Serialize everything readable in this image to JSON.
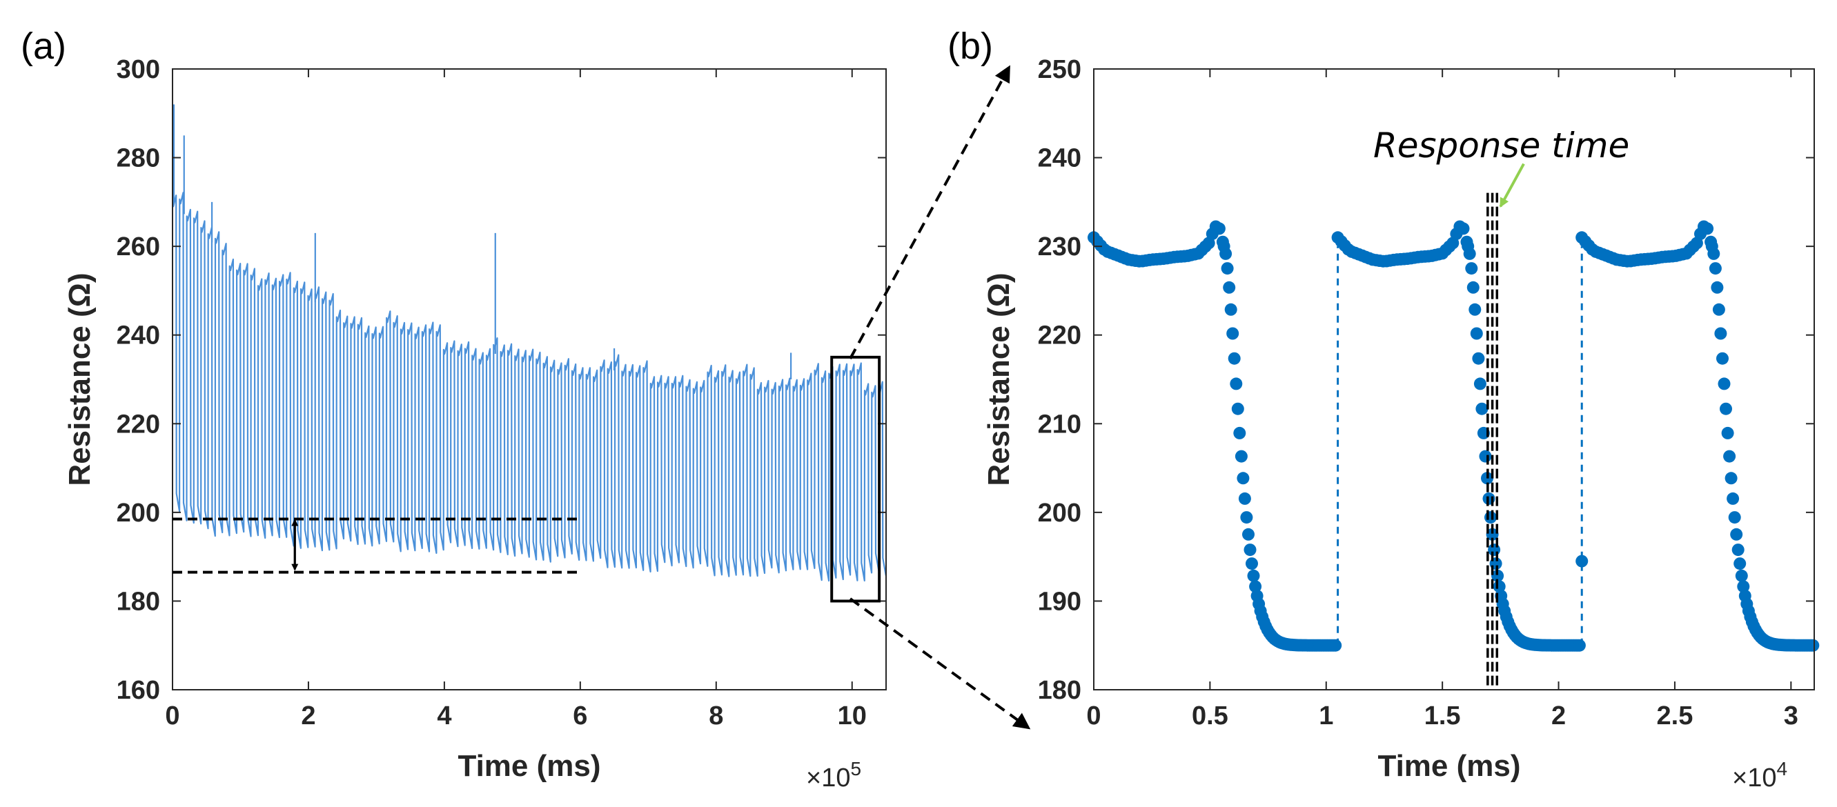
{
  "chart_data": [
    {
      "panel": "(a)",
      "type": "line",
      "xlabel": "Time (ms)",
      "ylabel": "Resistance (Ω)",
      "x_multiplier": "×10",
      "x_exponent": "5",
      "xlim": [
        0,
        10.5
      ],
      "ylim": [
        160,
        300
      ],
      "xticks": [
        0,
        2,
        4,
        6,
        8,
        10
      ],
      "yticks": [
        160,
        180,
        200,
        220,
        240,
        260,
        280,
        300
      ],
      "color": "#4a90d9",
      "cycles": 100,
      "series": [
        {
          "name": "Resistance",
          "x": [
            0,
            0.5,
            1,
            2,
            3,
            4,
            5,
            6,
            7,
            8,
            9,
            10,
            10.5
          ],
          "upper": [
            270,
            262,
            255,
            248,
            242,
            238,
            235,
            233,
            231,
            230,
            230,
            230,
            229
          ],
          "lower": [
            200,
            196,
            194,
            193,
            192,
            192,
            191,
            189,
            188,
            187,
            186,
            186,
            185
          ]
        }
      ],
      "spikes": [
        {
          "x": 0.02,
          "y": 292
        },
        {
          "x": 0.17,
          "y": 285
        },
        {
          "x": 0.58,
          "y": 270
        },
        {
          "x": 2.1,
          "y": 263
        },
        {
          "x": 4.75,
          "y": 263
        },
        {
          "x": 6.5,
          "y": 237
        },
        {
          "x": 9.1,
          "y": 236
        }
      ],
      "annotations": {
        "upper_dashed_y": 198.5,
        "lower_dashed_y": 186.5,
        "dashed_x_range": [
          0,
          6
        ],
        "double_arrow_x": 1.8,
        "zoom_box": {
          "x": [
            9.7,
            10.4
          ],
          "y": [
            180,
            235
          ]
        }
      }
    },
    {
      "panel": "(b)",
      "type": "scatter",
      "xlabel": "Time (ms)",
      "ylabel": "Resistance (Ω)",
      "x_multiplier": "×10",
      "x_exponent": "4",
      "xlim": [
        0,
        3.1
      ],
      "ylim": [
        180,
        250
      ],
      "xticks": [
        "0",
        "0.5",
        "1",
        "1.5",
        "2",
        "2.5",
        "3"
      ],
      "yticks": [
        180,
        190,
        200,
        210,
        220,
        230,
        240,
        250
      ],
      "color": "#0070c0",
      "cycle_starts": [
        0,
        1.05,
        2.1
      ],
      "cycle_period": 1.05,
      "high_profile": {
        "x_offset": [
          0,
          0.05,
          0.1,
          0.15,
          0.2,
          0.25,
          0.3,
          0.35,
          0.4,
          0.45,
          0.5,
          0.52,
          0.54,
          0.56
        ],
        "y": [
          231,
          229.5,
          229,
          228.5,
          228.3,
          228.5,
          228.6,
          228.8,
          228.9,
          229.2,
          230.5,
          232.3,
          232,
          230
        ]
      },
      "decay": {
        "start_offset": 0.56,
        "start_y": 230,
        "end_y": 185,
        "tau": 0.09
      },
      "jump_values": [
        229.8,
        194.5
      ],
      "dashed_verticals_x": [
        1.695,
        1.715,
        1.735
      ],
      "annotation": {
        "text": "Response time",
        "arrow_color": "#92d050"
      }
    }
  ]
}
